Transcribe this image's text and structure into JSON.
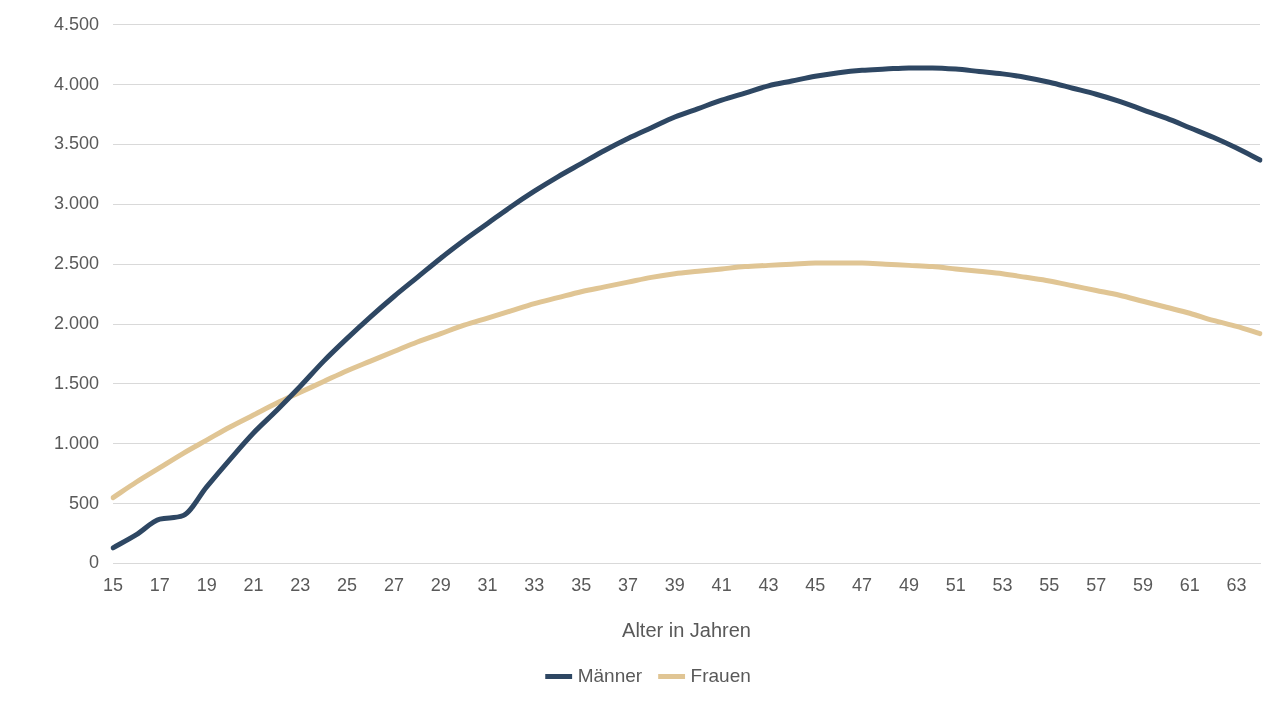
{
  "chart_data": {
    "type": "line",
    "xlabel": "Alter in Jahren",
    "categories": [
      "15",
      null,
      "17",
      null,
      "19",
      null,
      "21",
      null,
      "23",
      null,
      "25",
      null,
      "27",
      null,
      "29",
      null,
      "31",
      null,
      "33",
      null,
      "35",
      null,
      "37",
      null,
      "39",
      null,
      "41",
      null,
      "43",
      null,
      "45",
      null,
      "47",
      null,
      "49",
      null,
      "51",
      null,
      "53",
      null,
      "55",
      null,
      "57",
      null,
      "59",
      null,
      "61",
      null,
      "63",
      null
    ],
    "series": [
      {
        "name": "Männer",
        "color": "#2e4763",
        "values": [
          130,
          240,
          370,
          400,
          640,
          870,
          1090,
          1280,
          1480,
          1690,
          1880,
          2060,
          2230,
          2390,
          2550,
          2700,
          2840,
          2980,
          3110,
          3230,
          3340,
          3450,
          3550,
          3640,
          3730,
          3800,
          3870,
          3930,
          3990,
          4030,
          4070,
          4100,
          4120,
          4130,
          4140,
          4140,
          4130,
          4110,
          4090,
          4060,
          4020,
          3970,
          3920,
          3860,
          3790,
          3720,
          3640,
          3560,
          3470,
          3370
        ]
      },
      {
        "name": "Frauen",
        "color": "#e0c594",
        "values": [
          550,
          680,
          800,
          920,
          1030,
          1140,
          1240,
          1340,
          1430,
          1520,
          1610,
          1690,
          1770,
          1850,
          1920,
          1990,
          2050,
          2110,
          2170,
          2220,
          2270,
          2310,
          2350,
          2390,
          2420,
          2440,
          2460,
          2480,
          2490,
          2500,
          2510,
          2510,
          2510,
          2500,
          2490,
          2480,
          2460,
          2440,
          2420,
          2390,
          2360,
          2320,
          2280,
          2240,
          2190,
          2140,
          2090,
          2030,
          1980,
          1920
        ]
      }
    ],
    "ylim": [
      0,
      4500
    ],
    "yticks": [
      0,
      {
        "value": 500,
        "label": "500"
      },
      {
        "value": 1000,
        "label": "1.000"
      },
      {
        "value": 1500,
        "label": "1.500"
      },
      {
        "value": 2000,
        "label": "2.000"
      },
      {
        "value": 2500,
        "label": "2.500"
      },
      {
        "value": 3000,
        "label": "3.000"
      },
      {
        "value": 3500,
        "label": "3.500"
      },
      {
        "value": 4000,
        "label": "4.000"
      },
      {
        "value": 4500,
        "label": "4.500"
      }
    ],
    "grid": "y",
    "legend": "bottom",
    "marker": "none",
    "line_style": "solid"
  }
}
